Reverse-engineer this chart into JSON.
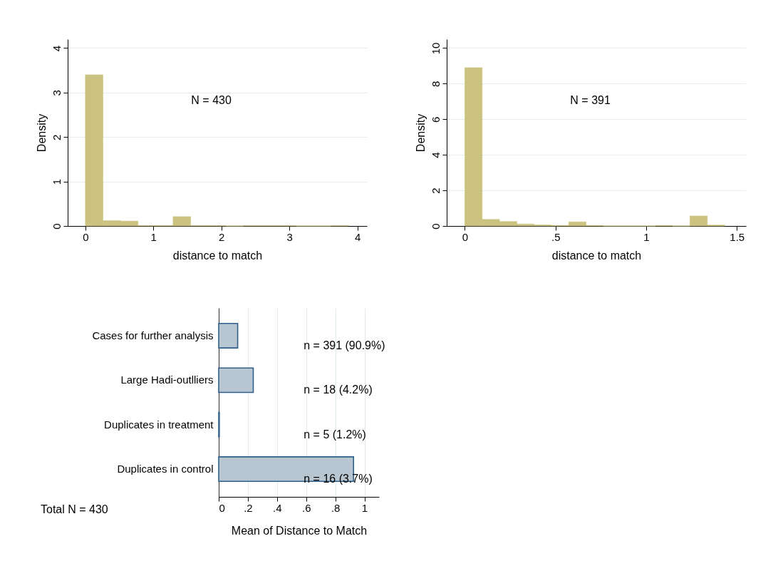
{
  "chart_data": [
    {
      "type": "histogram",
      "xlabel": "distance to match",
      "ylabel": "Density",
      "annotations": [
        "N = 430"
      ],
      "color": "#cbc280",
      "bins": [
        0,
        0.258,
        0.516,
        0.774,
        1.032,
        1.29,
        1.548,
        1.806,
        2.064,
        2.322,
        2.58,
        2.838,
        3.096,
        3.354,
        3.612,
        3.87
      ],
      "values": [
        3.4,
        0.12,
        0.11,
        0.01,
        0.01,
        0.21,
        0.01,
        0.01,
        0,
        0.01,
        0.01,
        0.01,
        0,
        0,
        0.01
      ],
      "xlim": [
        -0.26,
        4.14
      ],
      "ylim": [
        0,
        4.2
      ],
      "xticks": [
        0,
        1,
        2,
        3,
        4
      ],
      "yticks": [
        0,
        1,
        2,
        3,
        4
      ],
      "grid": "y"
    },
    {
      "type": "histogram",
      "xlabel": "distance to match",
      "ylabel": "Density",
      "annotations": [
        "N = 391"
      ],
      "color": "#cbc280",
      "bins": [
        0,
        0.0955,
        0.191,
        0.2865,
        0.382,
        0.4775,
        0.573,
        0.6685,
        0.764,
        0.8595,
        0.955,
        1.0505,
        1.146,
        1.2415,
        1.337,
        1.4325
      ],
      "values": [
        8.9,
        0.37,
        0.25,
        0.11,
        0.06,
        0.03,
        0.23,
        0.03,
        0,
        0,
        0,
        0.03,
        0,
        0.56,
        0.05
      ],
      "xlim": [
        -0.1,
        1.55
      ],
      "ylim": [
        0,
        10.5
      ],
      "xticks": [
        0,
        {
          "value": 0.5,
          "label": ".5"
        },
        1,
        1.5
      ],
      "yticks": [
        0,
        2,
        4,
        6,
        8,
        10
      ],
      "grid": "y"
    },
    {
      "type": "bar",
      "orientation": "horizontal",
      "xlabel": "Mean of Distance to Match",
      "color": "#b8c6d2",
      "categories": [
        "Cases for further analysis",
        "Large Hadi-outlliers",
        "Duplicates in treatment",
        "Duplicates in control"
      ],
      "values": [
        0.13,
        0.237,
        0.004,
        0.925
      ],
      "annotations": [
        "n = 391 (90.9%)",
        "n = 18 (4.2%)",
        "n = 5 (1.2%)",
        "n = 16 (3.7%)",
        "Total N = 430"
      ],
      "xlim": [
        0,
        1.1
      ],
      "xticks": [
        0,
        {
          "value": 0.2,
          "label": ".2"
        },
        {
          "value": 0.4,
          "label": ".4"
        },
        {
          "value": 0.6,
          "label": ".6"
        },
        {
          "value": 0.8,
          "label": ".8"
        },
        1
      ],
      "grid": "x"
    }
  ]
}
